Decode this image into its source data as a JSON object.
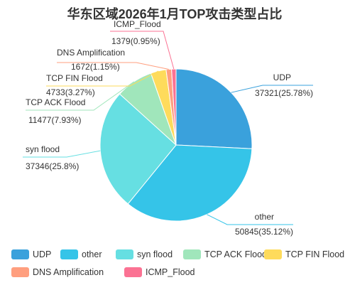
{
  "chart_data": {
    "type": "pie",
    "title": "华东区域2026年1月TOP攻击类型占比",
    "slices": [
      {
        "name": "UDP",
        "value": 37321,
        "percent": "25.78%",
        "label_value": "37321(25.78%)",
        "color": "#3aa1dc"
      },
      {
        "name": "other",
        "value": 50845,
        "percent": "35.12%",
        "label_value": "50845(35.12%)",
        "color": "#35c4e8"
      },
      {
        "name": "syn flood",
        "value": 37346,
        "percent": "25.8%",
        "label_value": "37346(25.8%)",
        "color": "#66dfe2"
      },
      {
        "name": "TCP ACK Flood",
        "value": 11477,
        "percent": "7.93%",
        "label_value": "11477(7.93%)",
        "color": "#a0e6bb"
      },
      {
        "name": "TCP FIN Flood",
        "value": 4733,
        "percent": "3.27%",
        "label_value": "4733(3.27%)",
        "color": "#fedb5b"
      },
      {
        "name": "DNS Amplification",
        "value": 1672,
        "percent": "1.15%",
        "label_value": "1672(1.15%)",
        "color": "#ff9f7f"
      },
      {
        "name": "ICMP_Flood",
        "value": 1379,
        "percent": "0.95%",
        "label_value": "1379(0.95%)",
        "color": "#fb7293"
      }
    ],
    "legend_position": "bottom"
  }
}
